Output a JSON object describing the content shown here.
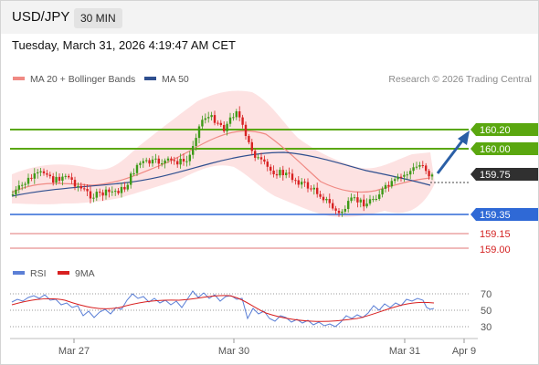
{
  "header": {
    "symbol": "USD/JPY",
    "timeframe": "30 MIN",
    "timestamp": "Tuesday, March 31, 2026 4:19:47 AM CET"
  },
  "legend": {
    "items": [
      {
        "label": "MA 20 + Bollinger Bands",
        "color": "#f08a84"
      },
      {
        "label": "MA 50",
        "color": "#2f4f8f"
      }
    ],
    "credit": "Research © 2026 Trading Central"
  },
  "levels": [
    {
      "value": "160.20",
      "kind": "resistance",
      "color": "#5aa70f"
    },
    {
      "value": "160.00",
      "kind": "resistance",
      "color": "#5aa70f"
    },
    {
      "value": "159.75",
      "kind": "last",
      "color": "#303030"
    },
    {
      "value": "159.35",
      "kind": "pivot",
      "color": "#2f69d6"
    },
    {
      "value": "159.15",
      "kind": "support",
      "color": "#d42323"
    },
    {
      "value": "159.00",
      "kind": "support",
      "color": "#d42323"
    }
  ],
  "rsi": {
    "legend": [
      {
        "label": "RSI",
        "color": "#5b7fd6"
      },
      {
        "label": "9MA",
        "color": "#d82020"
      }
    ],
    "levels": [
      "70",
      "50",
      "30"
    ]
  },
  "xaxis": {
    "labels": [
      "Mar 27",
      "Mar 30",
      "Mar 31",
      "Apr 9"
    ]
  },
  "colors": {
    "bull": "#3e9a18",
    "bear": "#d82222",
    "band_fill": "#fde2e2",
    "ma20": "#f08a84",
    "ma50": "#2f4f8f",
    "arrow": "#2a5fa6"
  }
}
